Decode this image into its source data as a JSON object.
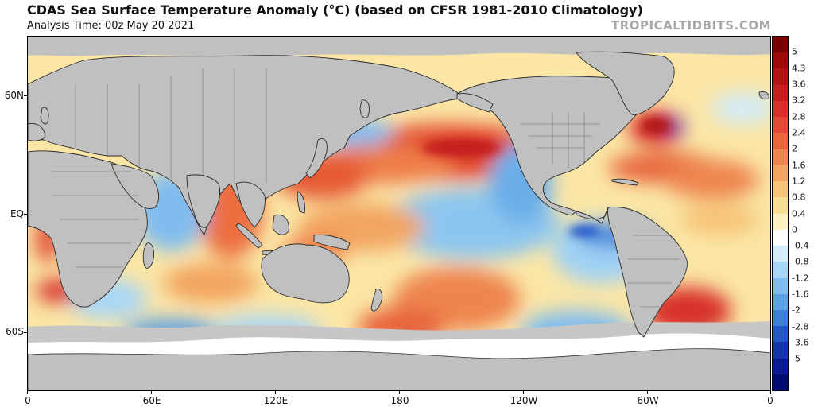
{
  "header": {
    "title": "CDAS Sea Surface Temperature Anomaly (°C) (based on CFSR 1981-2010 Climatology)",
    "subtitle": "Analysis Time: 00z May 20 2021",
    "watermark": "TROPICALTIDBITS.COM"
  },
  "map": {
    "lat_labels": [
      "60N",
      "EQ",
      "60S"
    ],
    "lon_labels": [
      "0",
      "60E",
      "120E",
      "180",
      "120W",
      "60W",
      "0"
    ],
    "land_color": "#c0c0c0",
    "ice_color": "#ffffff"
  },
  "colorbar": {
    "labels": [
      "5",
      "4.3",
      "3.6",
      "3.2",
      "2.8",
      "2.4",
      "2",
      "1.6",
      "1.2",
      "0.8",
      "0.4",
      "0",
      "-0.4",
      "-0.8",
      "-1.2",
      "-1.6",
      "-2",
      "-2.8",
      "-3.6",
      "-5"
    ],
    "colors": [
      "#7a0000",
      "#9a0c0c",
      "#b01616",
      "#c41f1f",
      "#d8302a",
      "#e04a36",
      "#e8663e",
      "#ee8550",
      "#f2a560",
      "#f6c478",
      "#f9dd96",
      "#fdf1c4",
      "#ffffff",
      "#d4ecf9",
      "#a9d6f6",
      "#80bcef",
      "#5ca0e6",
      "#3d7fd9",
      "#2458c9",
      "#1634b0",
      "#0a1a94",
      "#000c6e"
    ]
  }
}
